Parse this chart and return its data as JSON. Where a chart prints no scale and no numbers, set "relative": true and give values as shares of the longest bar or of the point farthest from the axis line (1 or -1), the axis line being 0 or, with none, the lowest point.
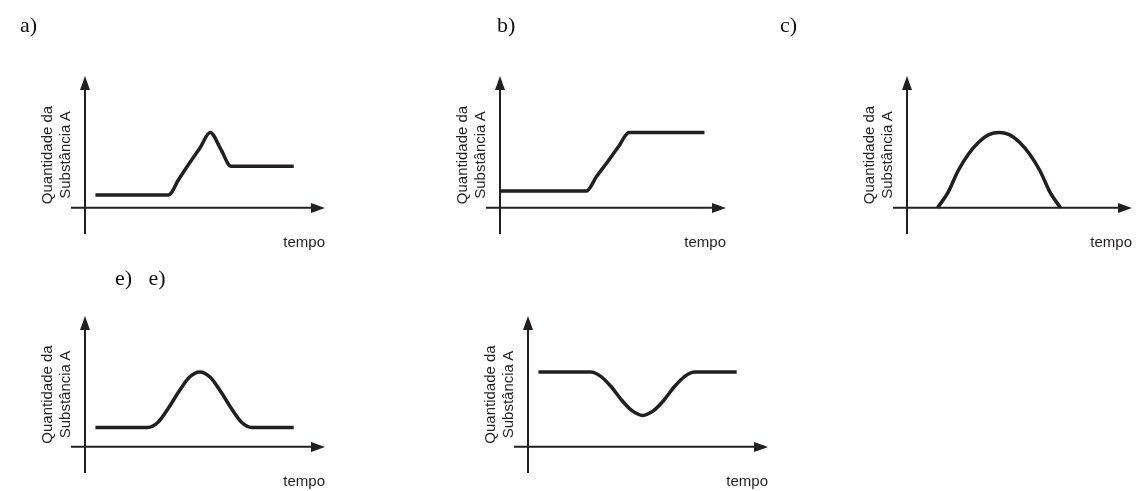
{
  "chart_data": [
    {
      "type": "line",
      "title": "a)",
      "xlabel": "tempo",
      "ylabel": "Quantidade da\nSubstância A",
      "relative": true,
      "grid": false,
      "tick_labels": false,
      "marker": "none",
      "line_style": "solid",
      "categories": [
        null,
        null,
        null,
        null,
        null,
        null,
        null,
        null,
        null,
        null,
        null,
        null,
        null,
        null,
        null,
        null,
        null,
        null,
        null,
        null,
        null,
        null,
        null,
        null
      ],
      "series": [
        {
          "color": "#231f20",
          "values": [
            null,
            0.17,
            0.17,
            0.17,
            0.17,
            0.17,
            0.17,
            0.17,
            0.17,
            0.38,
            0.59,
            0.79,
            1,
            0.78,
            0.55,
            0.55,
            0.55,
            0.55,
            0.55,
            0.55,
            0.55,
            null,
            null,
            null
          ]
        }
      ]
    },
    {
      "type": "line",
      "title": "b)",
      "xlabel": "tempo",
      "ylabel": "Quantidade da\nSubstância A",
      "relative": true,
      "grid": false,
      "tick_labels": false,
      "marker": "none",
      "line_style": "solid",
      "categories": [
        null,
        null,
        null,
        null,
        null,
        null,
        null,
        null,
        null,
        null,
        null,
        null,
        null,
        null,
        null,
        null,
        null,
        null,
        null,
        null,
        null,
        null
      ],
      "series": [
        {
          "color": "#231f20",
          "values": [
            0.22,
            0.22,
            0.22,
            0.22,
            0.22,
            0.22,
            0.22,
            0.22,
            0.22,
            0.42,
            0.61,
            0.81,
            1,
            1,
            1,
            1,
            1,
            1,
            1,
            1,
            null,
            null
          ]
        }
      ]
    },
    {
      "type": "line",
      "title": "c)",
      "xlabel": "tempo",
      "ylabel": "Quantidade da\nSubstância A",
      "relative": true,
      "grid": false,
      "tick_labels": false,
      "marker": "none",
      "line_style": "solid",
      "categories": [
        null,
        null,
        null,
        null,
        null,
        null,
        null,
        null,
        null,
        null,
        null,
        null,
        null,
        null,
        null,
        null,
        null,
        null,
        null,
        null,
        null,
        null,
        null
      ],
      "series": [
        {
          "color": "#231f20",
          "values": [
            null,
            null,
            null,
            0,
            0.2,
            0.49,
            0.71,
            0.87,
            0.97,
            1,
            0.97,
            0.87,
            0.71,
            0.49,
            0.2,
            0,
            null,
            null,
            null,
            null,
            null,
            null,
            null
          ]
        }
      ]
    },
    {
      "type": "line",
      "title": "e)   e)",
      "xlabel": "tempo",
      "ylabel": "Quantidade da\nSubstância A",
      "relative": true,
      "grid": false,
      "tick_labels": false,
      "marker": "none",
      "line_style": "solid",
      "categories": [
        null,
        null,
        null,
        null,
        null,
        null,
        null,
        null,
        null,
        null,
        null,
        null,
        null,
        null,
        null,
        null,
        null,
        null,
        null,
        null,
        null,
        null,
        null,
        null
      ],
      "series": [
        {
          "color": "#231f20",
          "values": [
            null,
            0.26,
            0.26,
            0.26,
            0.26,
            0.26,
            0.26,
            0.33,
            0.52,
            0.74,
            0.93,
            1,
            0.93,
            0.74,
            0.52,
            0.33,
            0.26,
            0.26,
            0.26,
            0.26,
            0.26,
            null,
            null,
            null
          ]
        }
      ]
    },
    {
      "type": "line",
      "xlabel": "tempo",
      "ylabel": "Quantidade da\nSubstância A",
      "relative": true,
      "grid": false,
      "tick_labels": false,
      "marker": "none",
      "line_style": "solid",
      "categories": [
        null,
        null,
        null,
        null,
        null,
        null,
        null,
        null,
        null,
        null,
        null,
        null,
        null,
        null,
        null,
        null,
        null,
        null,
        null,
        null,
        null,
        null,
        null,
        null
      ],
      "series": [
        {
          "color": "#231f20",
          "values": [
            null,
            1,
            1,
            1,
            1,
            1,
            1,
            0.94,
            0.8,
            0.62,
            0.48,
            0.42,
            0.48,
            0.62,
            0.8,
            0.94,
            1,
            1,
            1,
            1,
            1,
            null,
            null,
            null
          ]
        }
      ]
    }
  ]
}
